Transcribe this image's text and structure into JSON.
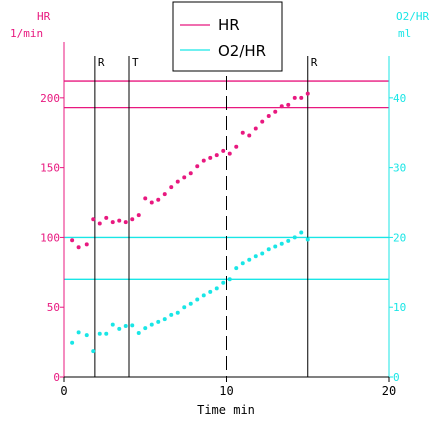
{
  "chart_data": {
    "type": "scatter",
    "xlabel": "Time  min",
    "xlim": [
      0,
      20
    ],
    "x_ticks": [
      "0",
      "10",
      "20"
    ],
    "left_axis": {
      "label_line1": "HR",
      "label_line2": "1/min",
      "ylim": [
        0,
        240
      ],
      "ticks": [
        "0",
        "50",
        "100",
        "150",
        "200"
      ]
    },
    "right_axis": {
      "label_line1": "O2/HR",
      "label_line2": "ml",
      "ylim": [
        0,
        48
      ],
      "ticks": [
        "0",
        "10",
        "20",
        "30",
        "40"
      ]
    },
    "phase_markers": [
      {
        "x": 1.9,
        "label": "R",
        "style": "solid"
      },
      {
        "x": 4.0,
        "label": "T",
        "style": "solid"
      },
      {
        "x": 10.0,
        "label": "",
        "style": "dashed"
      },
      {
        "x": 15.0,
        "label": "R",
        "style": "solid"
      }
    ],
    "reference_lines": [
      {
        "series": "HR",
        "axis": "left",
        "value": 212
      },
      {
        "series": "HR",
        "axis": "left",
        "value": 193
      },
      {
        "series": "O2/HR",
        "axis": "right",
        "value": 20
      },
      {
        "series": "O2/HR",
        "axis": "right",
        "value": 14
      }
    ],
    "legend": {
      "position": "top-center",
      "entries": [
        "HR",
        "O2/HR"
      ]
    },
    "series": [
      {
        "name": "HR",
        "axis": "left",
        "color": "#e8187f",
        "points": [
          [
            0.5,
            98
          ],
          [
            0.9,
            93
          ],
          [
            1.4,
            95
          ],
          [
            1.8,
            113
          ],
          [
            2.2,
            110
          ],
          [
            2.6,
            114
          ],
          [
            3.0,
            111
          ],
          [
            3.4,
            112
          ],
          [
            3.8,
            111
          ],
          [
            4.2,
            113
          ],
          [
            4.6,
            116
          ],
          [
            5.0,
            128
          ],
          [
            5.4,
            125
          ],
          [
            5.8,
            127
          ],
          [
            6.2,
            131
          ],
          [
            6.6,
            136
          ],
          [
            7.0,
            140
          ],
          [
            7.4,
            143
          ],
          [
            7.8,
            146
          ],
          [
            8.2,
            151
          ],
          [
            8.6,
            155
          ],
          [
            9.0,
            157
          ],
          [
            9.4,
            159
          ],
          [
            9.8,
            162
          ],
          [
            10.2,
            160
          ],
          [
            10.6,
            165
          ],
          [
            11.0,
            175
          ],
          [
            11.4,
            173
          ],
          [
            11.8,
            178
          ],
          [
            12.2,
            183
          ],
          [
            12.6,
            187
          ],
          [
            13.0,
            190
          ],
          [
            13.4,
            194
          ],
          [
            13.8,
            195
          ],
          [
            14.2,
            200
          ],
          [
            14.6,
            200
          ],
          [
            15.0,
            203
          ]
        ]
      },
      {
        "name": "O2/HR",
        "axis": "right",
        "color": "#19e6e6",
        "points": [
          [
            0.5,
            4.9
          ],
          [
            0.9,
            6.4
          ],
          [
            1.4,
            6.0
          ],
          [
            1.8,
            3.7
          ],
          [
            2.2,
            6.2
          ],
          [
            2.6,
            6.2
          ],
          [
            3.0,
            7.5
          ],
          [
            3.4,
            6.9
          ],
          [
            3.8,
            7.3
          ],
          [
            4.2,
            7.4
          ],
          [
            4.6,
            6.3
          ],
          [
            5.0,
            7.0
          ],
          [
            5.4,
            7.5
          ],
          [
            5.8,
            7.9
          ],
          [
            6.2,
            8.3
          ],
          [
            6.6,
            8.9
          ],
          [
            7.0,
            9.2
          ],
          [
            7.4,
            10.0
          ],
          [
            7.8,
            10.5
          ],
          [
            8.2,
            11.1
          ],
          [
            8.6,
            11.7
          ],
          [
            9.0,
            12.2
          ],
          [
            9.4,
            12.7
          ],
          [
            9.8,
            13.5
          ],
          [
            10.2,
            14.0
          ],
          [
            10.6,
            15.6
          ],
          [
            11.0,
            16.3
          ],
          [
            11.4,
            16.8
          ],
          [
            11.8,
            17.3
          ],
          [
            12.2,
            17.7
          ],
          [
            12.6,
            18.3
          ],
          [
            13.0,
            18.7
          ],
          [
            13.4,
            19.1
          ],
          [
            13.8,
            19.5
          ],
          [
            14.2,
            20.0
          ],
          [
            14.6,
            20.7
          ],
          [
            15.0,
            19.7
          ]
        ]
      }
    ]
  },
  "colors": {
    "hr": "#e8187f",
    "o2hr": "#19e6e6",
    "axis": "#000000"
  }
}
